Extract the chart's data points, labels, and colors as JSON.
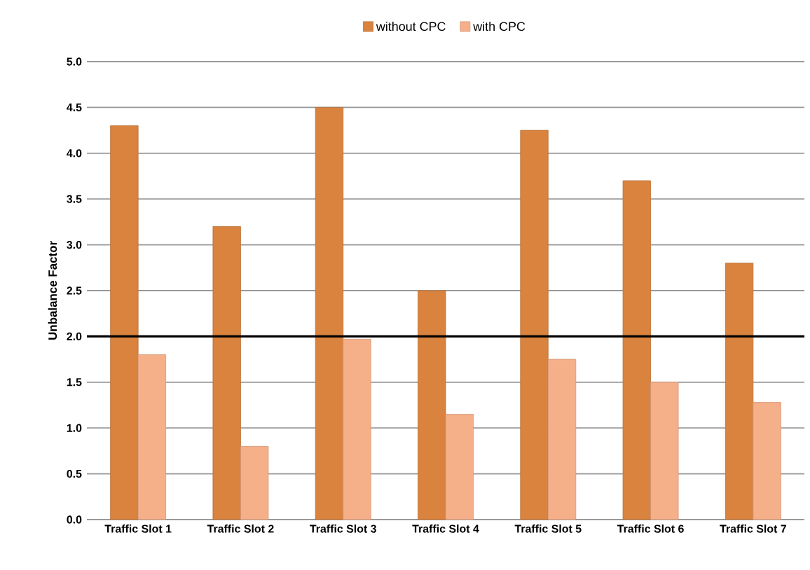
{
  "chart_data": {
    "type": "bar",
    "ylabel": "Unbalance Factor",
    "categories": [
      "Traffic Slot 1",
      "Traffic Slot 2",
      "Traffic Slot 3",
      "Traffic Slot 4",
      "Traffic Slot 5",
      "Traffic Slot 6",
      "Traffic Slot 7"
    ],
    "series": [
      {
        "name": "without CPC",
        "color": "#d9833f",
        "values": [
          4.3,
          3.2,
          4.5,
          2.5,
          4.25,
          3.7,
          2.8
        ]
      },
      {
        "name": "with CPC",
        "color": "#f5b08a",
        "values": [
          1.8,
          0.8,
          1.97,
          1.15,
          1.75,
          1.5,
          1.28
        ]
      }
    ],
    "ylim": [
      0,
      5
    ],
    "yticks": [
      {
        "value": 0,
        "label": "0.0"
      },
      {
        "value": 0.5,
        "label": "0.5"
      },
      {
        "value": 1,
        "label": "1.0"
      },
      {
        "value": 1.5,
        "label": "1.5"
      },
      {
        "value": 2,
        "label": "2.0"
      },
      {
        "value": 2.5,
        "label": "2.5"
      },
      {
        "value": 3,
        "label": "3.0"
      },
      {
        "value": 3.5,
        "label": "3.5"
      },
      {
        "value": 4,
        "label": "4.0"
      },
      {
        "value": 4.5,
        "label": "4.5"
      },
      {
        "value": 5,
        "label": "5.0"
      }
    ],
    "ref_lines": [
      {
        "axis": "y",
        "value": 2,
        "color": "#000000"
      }
    ],
    "grid": "y",
    "legend": "top"
  }
}
